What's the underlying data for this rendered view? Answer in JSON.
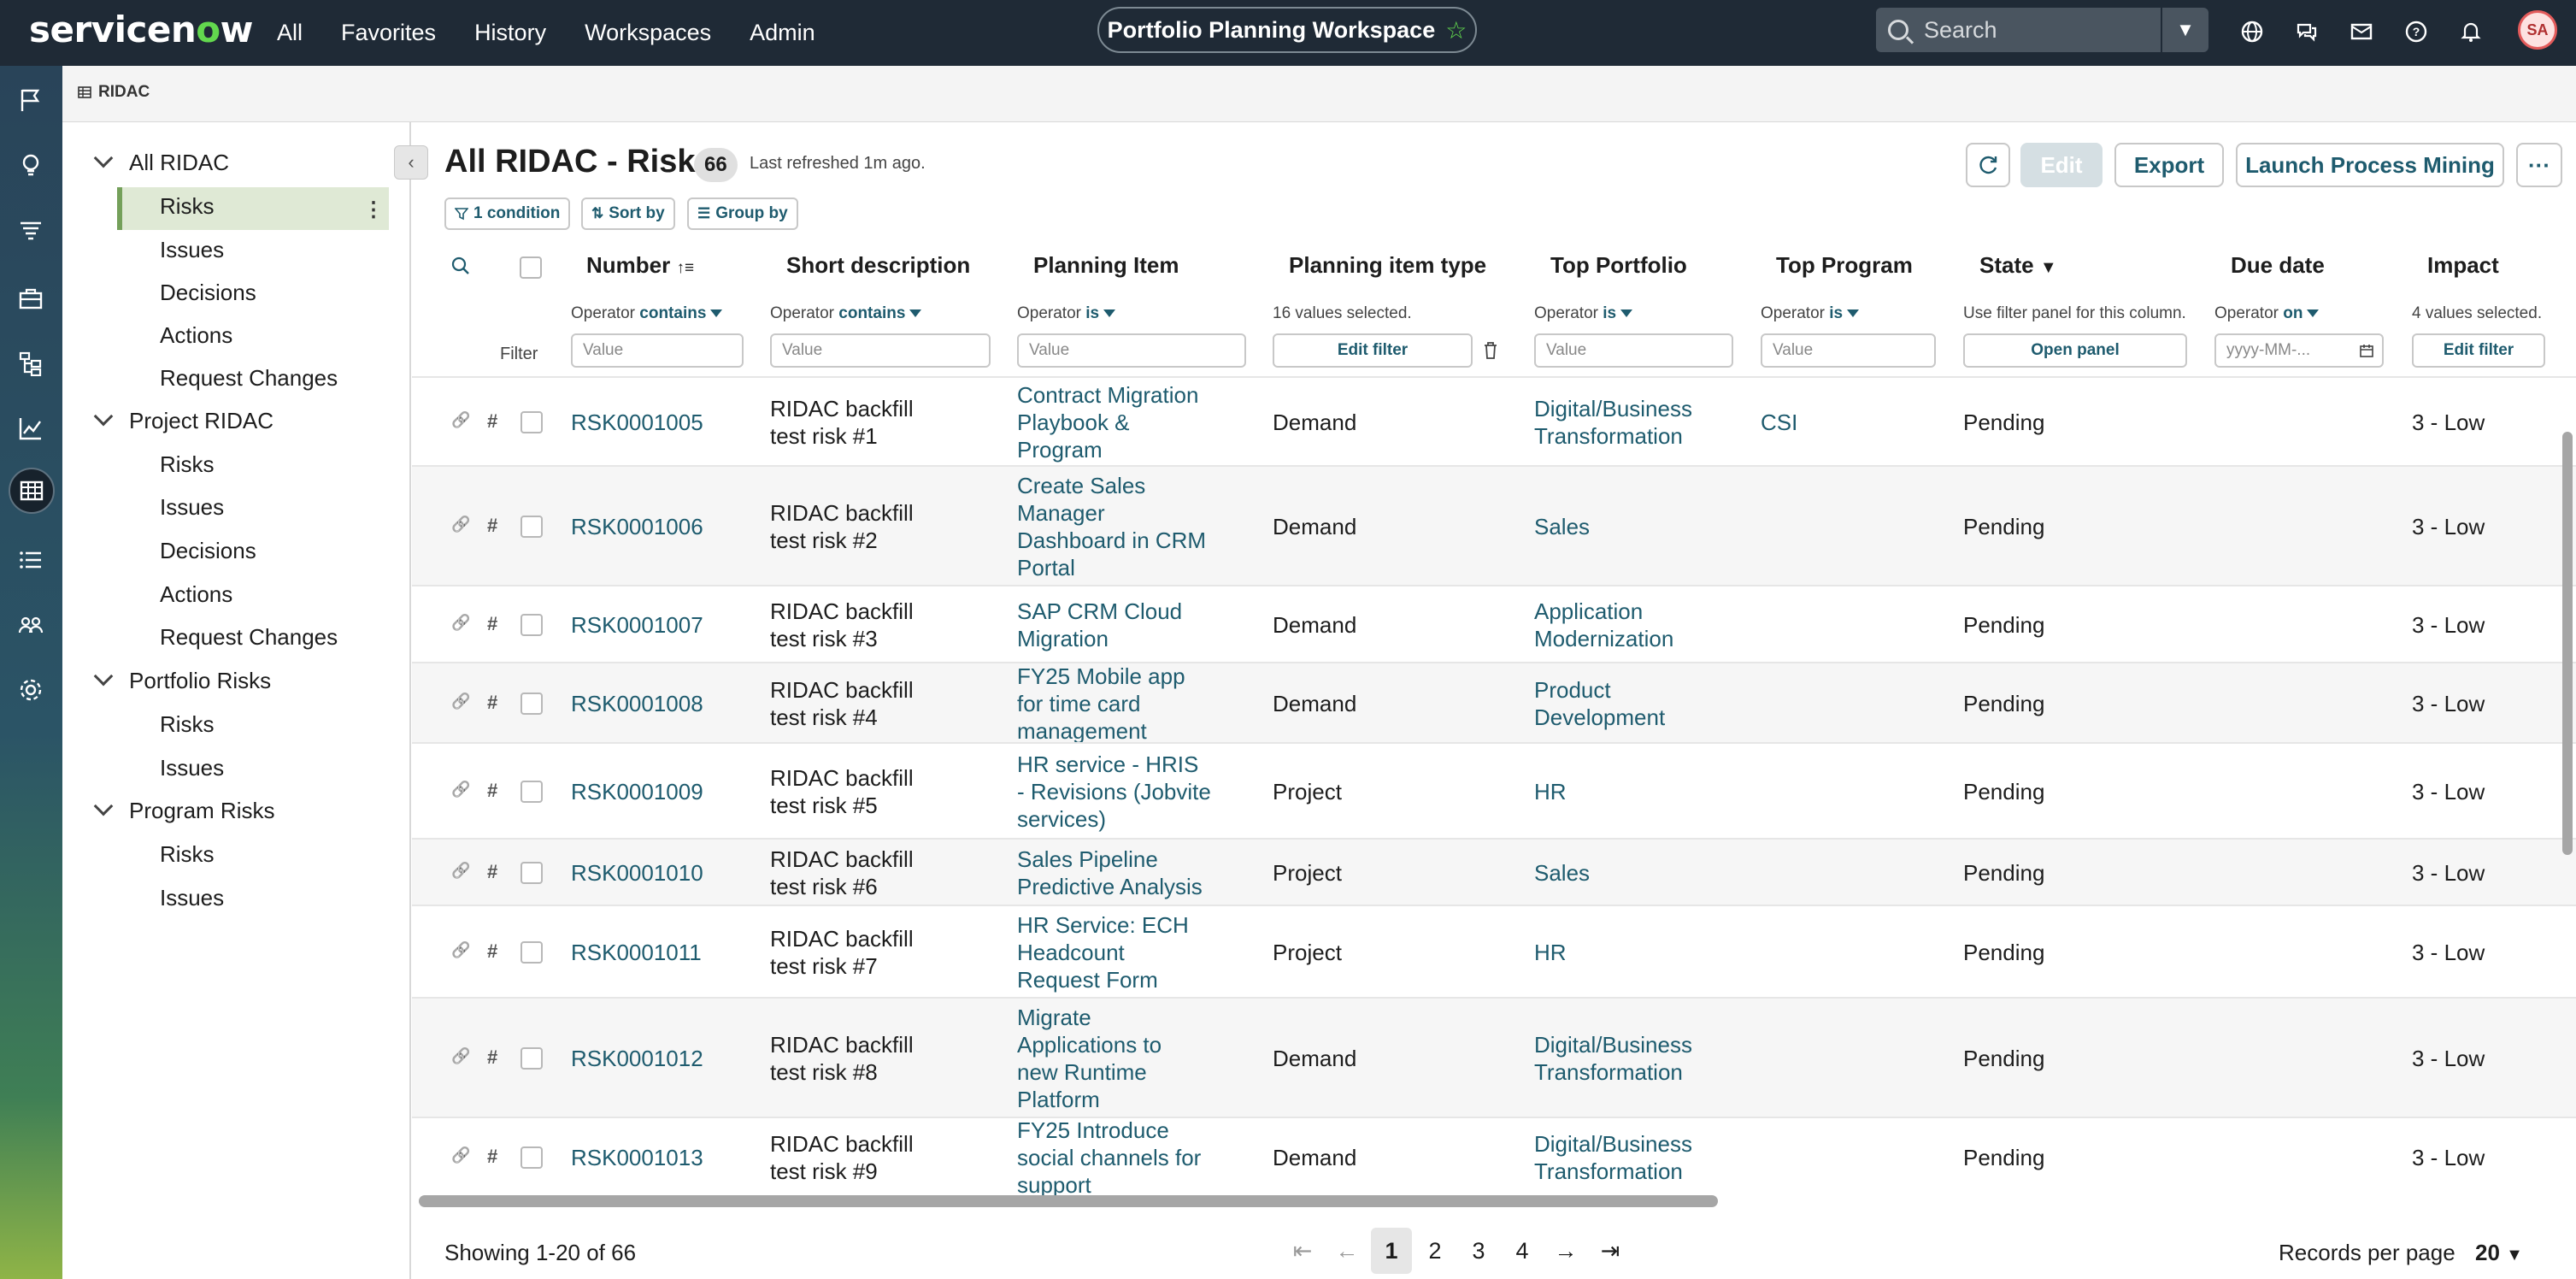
{
  "nav": {
    "logo_pre": "servicen",
    "logo_o": "o",
    "logo_post": "w",
    "links": [
      "All",
      "Favorites",
      "History",
      "Workspaces",
      "Admin"
    ],
    "workspace": "Portfolio Planning Workspace",
    "search_placeholder": "Search",
    "avatar_initials": "SA"
  },
  "tab": {
    "label": "RIDAC"
  },
  "tree": [
    {
      "label": "All RIDAC",
      "children": [
        "Risks",
        "Issues",
        "Decisions",
        "Actions",
        "Request Changes"
      ]
    },
    {
      "label": "Project RIDAC",
      "children": [
        "Risks",
        "Issues",
        "Decisions",
        "Actions",
        "Request Changes"
      ]
    },
    {
      "label": "Portfolio Risks",
      "children": [
        "Risks",
        "Issues"
      ]
    },
    {
      "label": "Program Risks",
      "children": [
        "Risks",
        "Issues"
      ]
    }
  ],
  "list": {
    "title": "All RIDAC - Risks",
    "count": "66",
    "refreshed": "Last refreshed 1m ago.",
    "buttons": {
      "edit": "Edit",
      "export": "Export",
      "launch": "Launch Process Mining",
      "more": "···"
    },
    "chips": {
      "condition": "1 condition",
      "sort": "Sort by",
      "group": "Group by"
    },
    "filter_label": "Filter",
    "columns": {
      "number": "Number",
      "short_description": "Short description",
      "planning_item": "Planning Item",
      "planning_item_type": "Planning item type",
      "top_portfolio": "Top Portfolio",
      "top_program": "Top Program",
      "state": "State",
      "due_date": "Due date",
      "impact": "Impact"
    },
    "filters": {
      "operator_word": "Operator",
      "number_op": "contains",
      "short_desc_op": "contains",
      "planning_item_op": "is",
      "planning_item_type_text": "16 values selected.",
      "top_portfolio_op": "is",
      "top_program_op": "is",
      "state_text": "Use filter panel for this column.",
      "due_date_op": "on",
      "impact_text": "4 values selected.",
      "value_placeholder": "Value",
      "date_placeholder": "yyyy-MM-...",
      "edit_filter": "Edit filter",
      "open_panel": "Open panel"
    },
    "rows": [
      {
        "number": "RSK0001005",
        "desc": [
          "RIDAC backfill",
          "test risk #1"
        ],
        "planning_item": [
          "Contract Migration",
          "Playbook &",
          "Program"
        ],
        "type": "Demand",
        "portfolio": [
          "Digital/Business",
          "Transformation"
        ],
        "program": "CSI",
        "state": "Pending",
        "impact": "3 - Low"
      },
      {
        "number": "RSK0001006",
        "desc": [
          "RIDAC backfill",
          "test risk #2"
        ],
        "planning_item": [
          "Create Sales",
          "Manager",
          "Dashboard in CRM",
          "Portal"
        ],
        "type": "Demand",
        "portfolio": [
          "Sales"
        ],
        "program": "",
        "state": "Pending",
        "impact": "3 - Low"
      },
      {
        "number": "RSK0001007",
        "desc": [
          "RIDAC backfill",
          "test risk #3"
        ],
        "planning_item": [
          "SAP CRM Cloud",
          "Migration"
        ],
        "type": "Demand",
        "portfolio": [
          "Application",
          "Modernization"
        ],
        "program": "",
        "state": "Pending",
        "impact": "3 - Low"
      },
      {
        "number": "RSK0001008",
        "desc": [
          "RIDAC backfill",
          "test risk #4"
        ],
        "planning_item": [
          "FY25 Mobile app",
          "for time card",
          "management"
        ],
        "type": "Demand",
        "portfolio": [
          "Product",
          "Development"
        ],
        "program": "",
        "state": "Pending",
        "impact": "3 - Low"
      },
      {
        "number": "RSK0001009",
        "desc": [
          "RIDAC backfill",
          "test risk #5"
        ],
        "planning_item": [
          "HR service - HRIS",
          "- Revisions (Jobvite",
          "services)"
        ],
        "type": "Project",
        "portfolio": [
          "HR"
        ],
        "program": "",
        "state": "Pending",
        "impact": "3 - Low"
      },
      {
        "number": "RSK0001010",
        "desc": [
          "RIDAC backfill",
          "test risk #6"
        ],
        "planning_item": [
          "Sales Pipeline",
          "Predictive Analysis"
        ],
        "type": "Project",
        "portfolio": [
          "Sales"
        ],
        "program": "",
        "state": "Pending",
        "impact": "3 - Low"
      },
      {
        "number": "RSK0001011",
        "desc": [
          "RIDAC backfill",
          "test risk #7"
        ],
        "planning_item": [
          "HR Service: ECH",
          "Headcount",
          "Request Form"
        ],
        "type": "Project",
        "portfolio": [
          "HR"
        ],
        "program": "",
        "state": "Pending",
        "impact": "3 - Low"
      },
      {
        "number": "RSK0001012",
        "desc": [
          "RIDAC backfill",
          "test risk #8"
        ],
        "planning_item": [
          "Migrate",
          "Applications to",
          "new Runtime",
          "Platform"
        ],
        "type": "Demand",
        "portfolio": [
          "Digital/Business",
          "Transformation"
        ],
        "program": "",
        "state": "Pending",
        "impact": "3 - Low"
      },
      {
        "number": "RSK0001013",
        "desc": [
          "RIDAC backfill",
          "test risk #9"
        ],
        "planning_item": [
          "FY25 Introduce",
          "social channels for",
          "support"
        ],
        "type": "Demand",
        "portfolio": [
          "Digital/Business",
          "Transformation"
        ],
        "program": "",
        "state": "Pending",
        "impact": "3 - Low"
      }
    ],
    "footer": {
      "showing": "Showing 1-20 of 66",
      "pages": [
        "1",
        "2",
        "3",
        "4"
      ],
      "records_per_page_label": "Records per page",
      "records_per_page": "20"
    }
  },
  "icons": {
    "rail": [
      "flag-icon",
      "lightbulb-icon",
      "funnel-icon",
      "briefcase-icon",
      "hierarchy-icon",
      "chart-line-icon",
      "table-icon",
      "list-icon",
      "people-icon",
      "gear-icon"
    ],
    "top": [
      "globe-icon",
      "chat-icon",
      "inbox-icon",
      "help-icon",
      "bell-icon"
    ]
  }
}
